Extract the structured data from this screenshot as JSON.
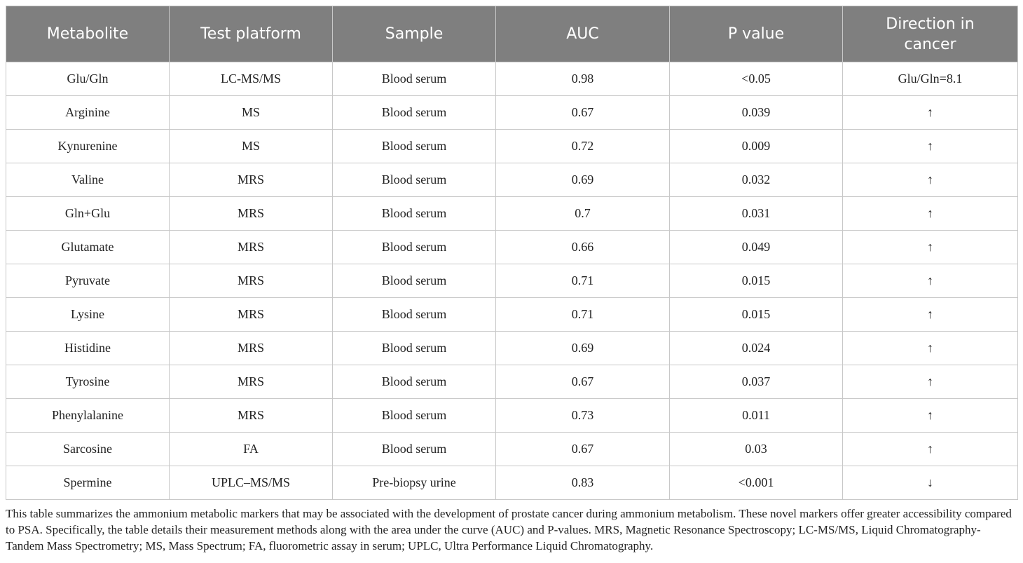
{
  "table": {
    "header": [
      "Metabolite",
      "Test platform",
      "Sample",
      "AUC",
      "P value",
      "Direction in cancer"
    ],
    "rows": [
      [
        "Glu/Gln",
        "LC-MS/MS",
        "Blood serum",
        "0.98",
        "<0.05",
        "Glu/Gln=8.1"
      ],
      [
        "Arginine",
        "MS",
        "Blood serum",
        "0.67",
        "0.039",
        "↑"
      ],
      [
        "Kynurenine",
        "MS",
        "Blood serum",
        "0.72",
        "0.009",
        "↑"
      ],
      [
        "Valine",
        "MRS",
        "Blood serum",
        "0.69",
        "0.032",
        "↑"
      ],
      [
        "Gln+Glu",
        "MRS",
        "Blood serum",
        "0.7",
        "0.031",
        "↑"
      ],
      [
        "Glutamate",
        "MRS",
        "Blood serum",
        "0.66",
        "0.049",
        "↑"
      ],
      [
        "Pyruvate",
        "MRS",
        "Blood serum",
        "0.71",
        "0.015",
        "↑"
      ],
      [
        "Lysine",
        "MRS",
        "Blood serum",
        "0.71",
        "0.015",
        "↑"
      ],
      [
        "Histidine",
        "MRS",
        "Blood serum",
        "0.69",
        "0.024",
        "↑"
      ],
      [
        "Tyrosine",
        "MRS",
        "Blood serum",
        "0.67",
        "0.037",
        "↑"
      ],
      [
        "Phenylalanine",
        "MRS",
        "Blood serum",
        "0.73",
        "0.011",
        "↑"
      ],
      [
        "Sarcosine",
        "FA",
        "Blood serum",
        "0.67",
        "0.03",
        "↑"
      ],
      [
        "Spermine",
        "UPLC–MS/MS",
        "Pre-biopsy urine",
        "0.83",
        "<0.001",
        "↓"
      ]
    ]
  },
  "caption": "This table summarizes the ammonium metabolic markers that may be associated with the development of prostate cancer during ammonium metabolism. These novel markers offer greater accessibility compared to PSA. Specifically, the table details their measurement methods along with the area under the curve (AUC) and P-values. MRS, Magnetic Resonance Spectroscopy; LC-MS/MS, Liquid Chromatography-Tandem Mass Spectrometry; MS, Mass Spectrum; FA, fluorometric assay in serum; UPLC, Ultra Performance Liquid Chromatography."
}
